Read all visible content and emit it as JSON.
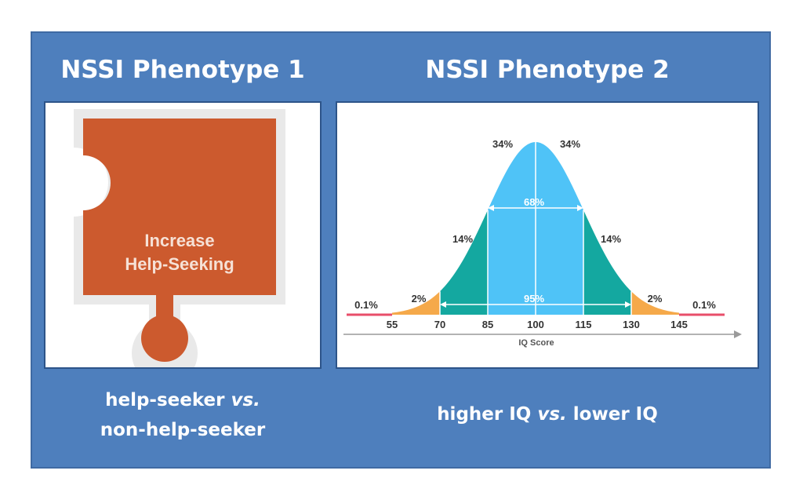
{
  "phenotype1": {
    "title": "NSSI Phenotype 1",
    "puzzle_text_line1": "Increase",
    "puzzle_text_line2": "Help-Seeking",
    "caption_part1": "help-seeker",
    "caption_vs": "vs.",
    "caption_part2": "non-help-seeker"
  },
  "phenotype2": {
    "title": "NSSI Phenotype 2",
    "caption_part1": "higher IQ",
    "caption_vs": "vs.",
    "caption_part2": "lower IQ"
  },
  "colors": {
    "frame": "#4e7fbd",
    "puzzle": "#cc5a2e",
    "center_band": "#4fc3f7",
    "mid_band": "#14a8a0",
    "outer_band": "#f5a94a",
    "tail_band": "#e84e6a"
  },
  "chart_data": {
    "type": "area",
    "xlabel": "IQ Score",
    "x_ticks": [
      55,
      70,
      85,
      100,
      115,
      130,
      145
    ],
    "band_percentages": [
      {
        "label": "0.1%",
        "range": "<55"
      },
      {
        "label": "2%",
        "range": "55-70"
      },
      {
        "label": "14%",
        "range": "70-85"
      },
      {
        "label": "34%",
        "range": "85-100"
      },
      {
        "label": "34%",
        "range": "100-115"
      },
      {
        "label": "14%",
        "range": "115-130"
      },
      {
        "label": "2%",
        "range": "130-145"
      },
      {
        "label": "0.1%",
        "range": ">145"
      }
    ],
    "interval_68": "68%",
    "interval_95": "95%",
    "mean": 100,
    "sd": 15
  }
}
